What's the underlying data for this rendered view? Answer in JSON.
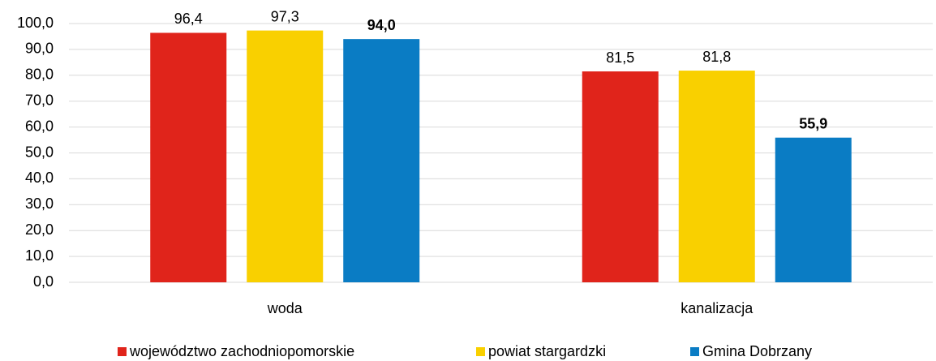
{
  "chart_data": {
    "type": "bar",
    "categories": [
      "woda",
      "kanalizacja"
    ],
    "series": [
      {
        "name": "województwo zachodniopomorskie",
        "color": "#e0241b",
        "values": [
          96.4,
          81.5
        ],
        "value_labels": [
          "96,4",
          "81,5"
        ]
      },
      {
        "name": "powiat stargardzki",
        "color": "#f9d000",
        "values": [
          97.3,
          81.8
        ],
        "value_labels": [
          "97,3",
          "81,8"
        ]
      },
      {
        "name": "Gmina Dobrzany",
        "color": "#0a7cc4",
        "values": [
          94.0,
          55.9
        ],
        "value_labels": [
          "94,0",
          "55,9"
        ],
        "label_bold": true
      }
    ],
    "ylim": [
      0,
      100
    ],
    "yticks": [
      {
        "value": 0,
        "label": "0,0"
      },
      {
        "value": 10,
        "label": "10,0"
      },
      {
        "value": 20,
        "label": "20,0"
      },
      {
        "value": 30,
        "label": "30,0"
      },
      {
        "value": 40,
        "label": "40,0"
      },
      {
        "value": 50,
        "label": "50,0"
      },
      {
        "value": 60,
        "label": "60,0"
      },
      {
        "value": 70,
        "label": "70,0"
      },
      {
        "value": 80,
        "label": "80,0"
      },
      {
        "value": 90,
        "label": "90,0"
      },
      {
        "value": 100,
        "label": "100,0"
      }
    ],
    "grid": true,
    "legend": "bottom"
  }
}
